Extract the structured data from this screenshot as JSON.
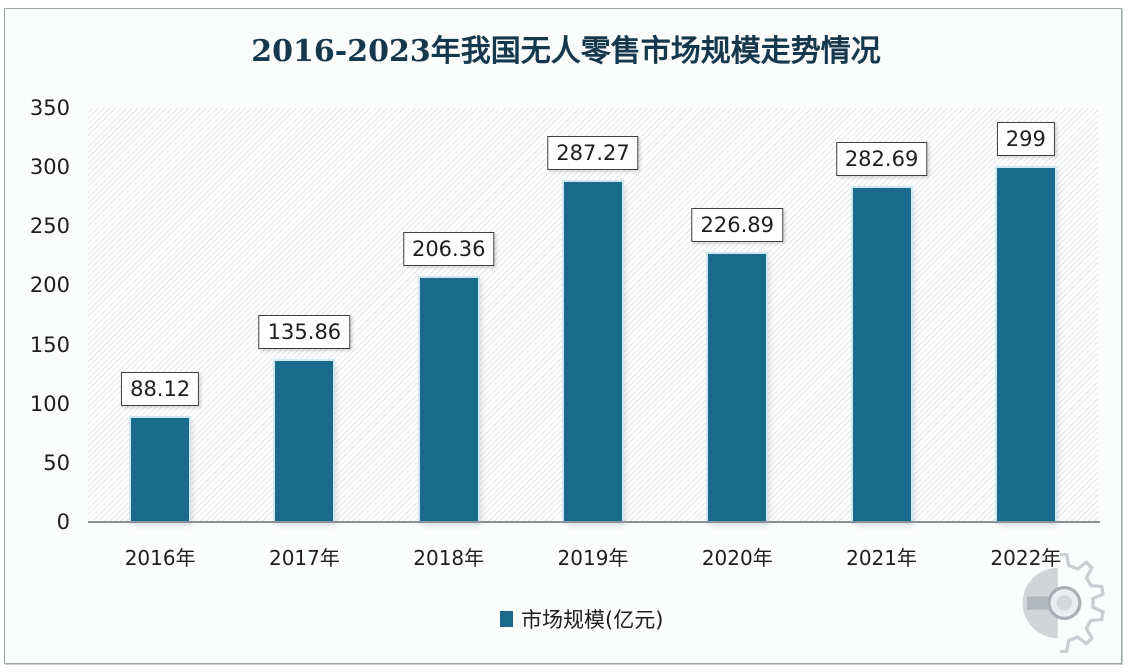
{
  "chart_data": {
    "type": "bar",
    "title": "2016-2023年我国无人零售市场规模走势情况",
    "categories": [
      "2016年",
      "2017年",
      "2018年",
      "2019年",
      "2020年",
      "2021年",
      "2022年"
    ],
    "series": [
      {
        "name": "市场规模(亿元)",
        "values": [
          88.12,
          135.86,
          206.36,
          287.27,
          226.89,
          282.69,
          299
        ],
        "color": "#1a6a8c"
      }
    ],
    "data_labels": [
      "88.12",
      "135.86",
      "206.36",
      "287.27",
      "226.89",
      "282.69",
      "299"
    ],
    "xlabel": "",
    "ylabel": "",
    "ylim": [
      0,
      350
    ],
    "yticks": [
      "0",
      "50",
      "100",
      "150",
      "200",
      "250",
      "300",
      "350"
    ],
    "grid": false,
    "legend_position": "bottom"
  },
  "legend": {
    "label": "市场规模(亿元)"
  },
  "watermark": {
    "icon": "gear-icon"
  }
}
